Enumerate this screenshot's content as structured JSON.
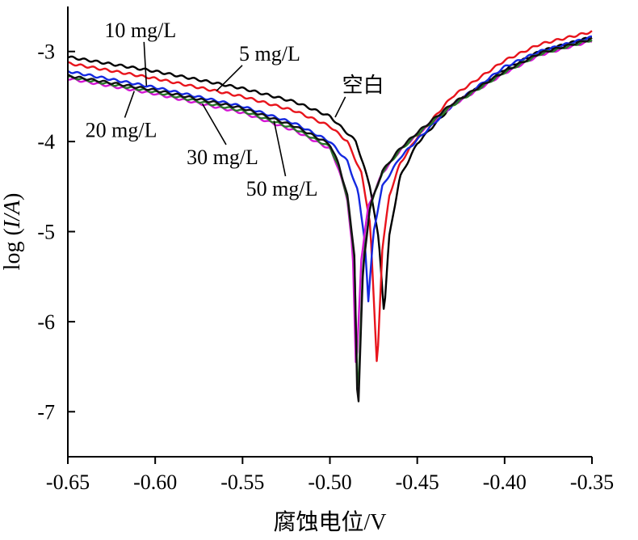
{
  "chart_data": {
    "type": "line",
    "xlabel": "腐蚀电位/V",
    "ylabel_prefix": "log (",
    "ylabel_italic": "I/A",
    "ylabel_suffix": ")",
    "xlim": [
      -0.65,
      -0.35
    ],
    "ylim": [
      -7.5,
      -2.5
    ],
    "xticks": [
      -0.65,
      -0.6,
      -0.55,
      -0.5,
      -0.45,
      -0.4,
      -0.35
    ],
    "xtick_labels": [
      "-0.65",
      "-0.60",
      "-0.55",
      "-0.50",
      "-0.45",
      "-0.40",
      "-0.35"
    ],
    "yticks": [
      -3,
      -4,
      -5,
      -6,
      -7
    ],
    "ytick_labels": [
      "-3",
      "-4",
      "-5",
      "-6",
      "-7"
    ],
    "series": [
      {
        "name": "空白",
        "color": "#000000",
        "ecorr": -0.469,
        "imin": -5.9,
        "anchors": [
          [
            -0.65,
            -3.06
          ],
          [
            -0.6,
            -3.22
          ],
          [
            -0.55,
            -3.41
          ],
          [
            -0.52,
            -3.56
          ],
          [
            -0.5,
            -3.72
          ],
          [
            -0.485,
            -4.0
          ],
          [
            -0.477,
            -4.5
          ],
          [
            -0.472,
            -5.1
          ],
          [
            -0.469,
            -5.9
          ],
          [
            -0.466,
            -5.05
          ],
          [
            -0.46,
            -4.4
          ],
          [
            -0.45,
            -4.02
          ],
          [
            -0.43,
            -3.6
          ],
          [
            -0.4,
            -3.2
          ],
          [
            -0.38,
            -3.0
          ],
          [
            -0.35,
            -2.84
          ]
        ]
      },
      {
        "name": "5 mg/L",
        "color": "#e8141c",
        "ecorr": -0.473,
        "imin": -6.52,
        "anchors": [
          [
            -0.65,
            -3.13
          ],
          [
            -0.6,
            -3.3
          ],
          [
            -0.55,
            -3.5
          ],
          [
            -0.52,
            -3.66
          ],
          [
            -0.5,
            -3.83
          ],
          [
            -0.49,
            -4.0
          ],
          [
            -0.482,
            -4.35
          ],
          [
            -0.477,
            -4.9
          ],
          [
            -0.473,
            -6.52
          ],
          [
            -0.47,
            -5.2
          ],
          [
            -0.466,
            -4.6
          ],
          [
            -0.46,
            -4.25
          ],
          [
            -0.45,
            -3.95
          ],
          [
            -0.43,
            -3.5
          ],
          [
            -0.4,
            -3.1
          ],
          [
            -0.38,
            -2.92
          ],
          [
            -0.35,
            -2.78
          ]
        ]
      },
      {
        "name": "10 mg/L",
        "color": "#1428e0",
        "ecorr": -0.478,
        "imin": -5.78,
        "anchors": [
          [
            -0.65,
            -3.22
          ],
          [
            -0.6,
            -3.4
          ],
          [
            -0.55,
            -3.61
          ],
          [
            -0.52,
            -3.8
          ],
          [
            -0.5,
            -4.0
          ],
          [
            -0.49,
            -4.22
          ],
          [
            -0.484,
            -4.55
          ],
          [
            -0.48,
            -5.1
          ],
          [
            -0.478,
            -5.78
          ],
          [
            -0.475,
            -5.0
          ],
          [
            -0.47,
            -4.5
          ],
          [
            -0.46,
            -4.18
          ],
          [
            -0.45,
            -3.98
          ],
          [
            -0.43,
            -3.6
          ],
          [
            -0.4,
            -3.17
          ],
          [
            -0.38,
            -3.0
          ],
          [
            -0.35,
            -2.84
          ]
        ]
      },
      {
        "name": "20 mg/L",
        "color": "#d415d4",
        "ecorr": -0.485,
        "imin": -6.6,
        "anchors": [
          [
            -0.65,
            -3.3
          ],
          [
            -0.6,
            -3.47
          ],
          [
            -0.55,
            -3.68
          ],
          [
            -0.52,
            -3.88
          ],
          [
            -0.5,
            -4.08
          ],
          [
            -0.495,
            -4.3
          ],
          [
            -0.49,
            -4.65
          ],
          [
            -0.487,
            -5.2
          ],
          [
            -0.485,
            -6.6
          ],
          [
            -0.482,
            -5.3
          ],
          [
            -0.478,
            -4.72
          ],
          [
            -0.47,
            -4.35
          ],
          [
            -0.46,
            -4.1
          ],
          [
            -0.45,
            -3.92
          ],
          [
            -0.43,
            -3.6
          ],
          [
            -0.4,
            -3.24
          ],
          [
            -0.38,
            -3.04
          ],
          [
            -0.35,
            -2.88
          ]
        ]
      },
      {
        "name": "30 mg/L",
        "color": "#2a7a2a",
        "ecorr": -0.484,
        "imin": -6.9,
        "anchors": [
          [
            -0.65,
            -3.28
          ],
          [
            -0.6,
            -3.45
          ],
          [
            -0.55,
            -3.66
          ],
          [
            -0.52,
            -3.86
          ],
          [
            -0.5,
            -4.06
          ],
          [
            -0.495,
            -4.28
          ],
          [
            -0.49,
            -4.62
          ],
          [
            -0.486,
            -5.3
          ],
          [
            -0.484,
            -6.9
          ],
          [
            -0.481,
            -5.35
          ],
          [
            -0.477,
            -4.72
          ],
          [
            -0.47,
            -4.34
          ],
          [
            -0.46,
            -4.1
          ],
          [
            -0.45,
            -3.92
          ],
          [
            -0.43,
            -3.6
          ],
          [
            -0.4,
            -3.23
          ],
          [
            -0.38,
            -3.03
          ],
          [
            -0.35,
            -2.87
          ]
        ]
      },
      {
        "name": "50 mg/L",
        "color": "#111111",
        "ecorr": -0.484,
        "imin": -7.12,
        "anchors": [
          [
            -0.65,
            -3.27
          ],
          [
            -0.6,
            -3.43
          ],
          [
            -0.55,
            -3.63
          ],
          [
            -0.52,
            -3.83
          ],
          [
            -0.5,
            -4.03
          ],
          [
            -0.495,
            -4.25
          ],
          [
            -0.49,
            -4.6
          ],
          [
            -0.486,
            -5.25
          ],
          [
            -0.484,
            -7.12
          ],
          [
            -0.481,
            -5.4
          ],
          [
            -0.477,
            -4.72
          ],
          [
            -0.47,
            -4.33
          ],
          [
            -0.46,
            -4.08
          ],
          [
            -0.45,
            -3.9
          ],
          [
            -0.43,
            -3.58
          ],
          [
            -0.4,
            -3.22
          ],
          [
            -0.38,
            -3.02
          ],
          [
            -0.35,
            -2.86
          ]
        ]
      }
    ],
    "annotations": [
      {
        "text": "10 mg/L",
        "target_series": "10 mg/L",
        "anchor": [
          -0.605,
          -3.38
        ],
        "label_at": [
          -0.629,
          -2.84
        ]
      },
      {
        "text": "5 mg/L",
        "target_series": "5 mg/L",
        "anchor": [
          -0.565,
          -3.44
        ],
        "label_at": [
          -0.552,
          -3.1
        ]
      },
      {
        "text": "空白",
        "target_series": "空白",
        "anchor": [
          -0.497,
          -3.73
        ],
        "label_at": [
          -0.493,
          -3.45
        ]
      },
      {
        "text": "20 mg/L",
        "target_series": "20 mg/L",
        "anchor": [
          -0.612,
          -3.44
        ],
        "label_at": [
          -0.64,
          -3.95
        ]
      },
      {
        "text": "30 mg/L",
        "target_series": "30 mg/L",
        "anchor": [
          -0.573,
          -3.58
        ],
        "label_at": [
          -0.582,
          -4.25
        ]
      },
      {
        "text": "50 mg/L",
        "target_series": "50 mg/L",
        "anchor": [
          -0.532,
          -3.77
        ],
        "label_at": [
          -0.548,
          -4.6
        ]
      }
    ]
  }
}
